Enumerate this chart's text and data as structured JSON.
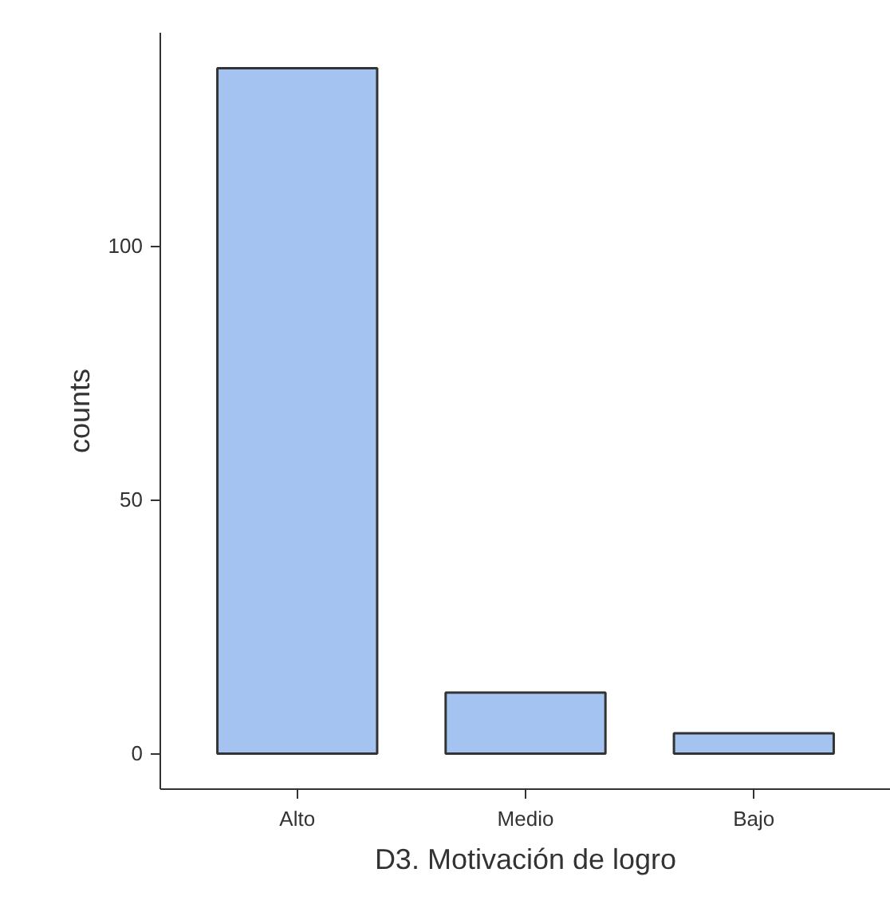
{
  "chart_data": {
    "type": "bar",
    "xlabel": "D3. Motivación de logro",
    "ylabel": "counts",
    "categories": [
      "Alto",
      "Medio",
      "Bajo"
    ],
    "values": [
      135,
      12,
      4
    ],
    "color": "#a4c3f0",
    "ylim": [
      -7,
      142
    ],
    "yticks": [
      0,
      50,
      100
    ],
    "grid": false
  }
}
